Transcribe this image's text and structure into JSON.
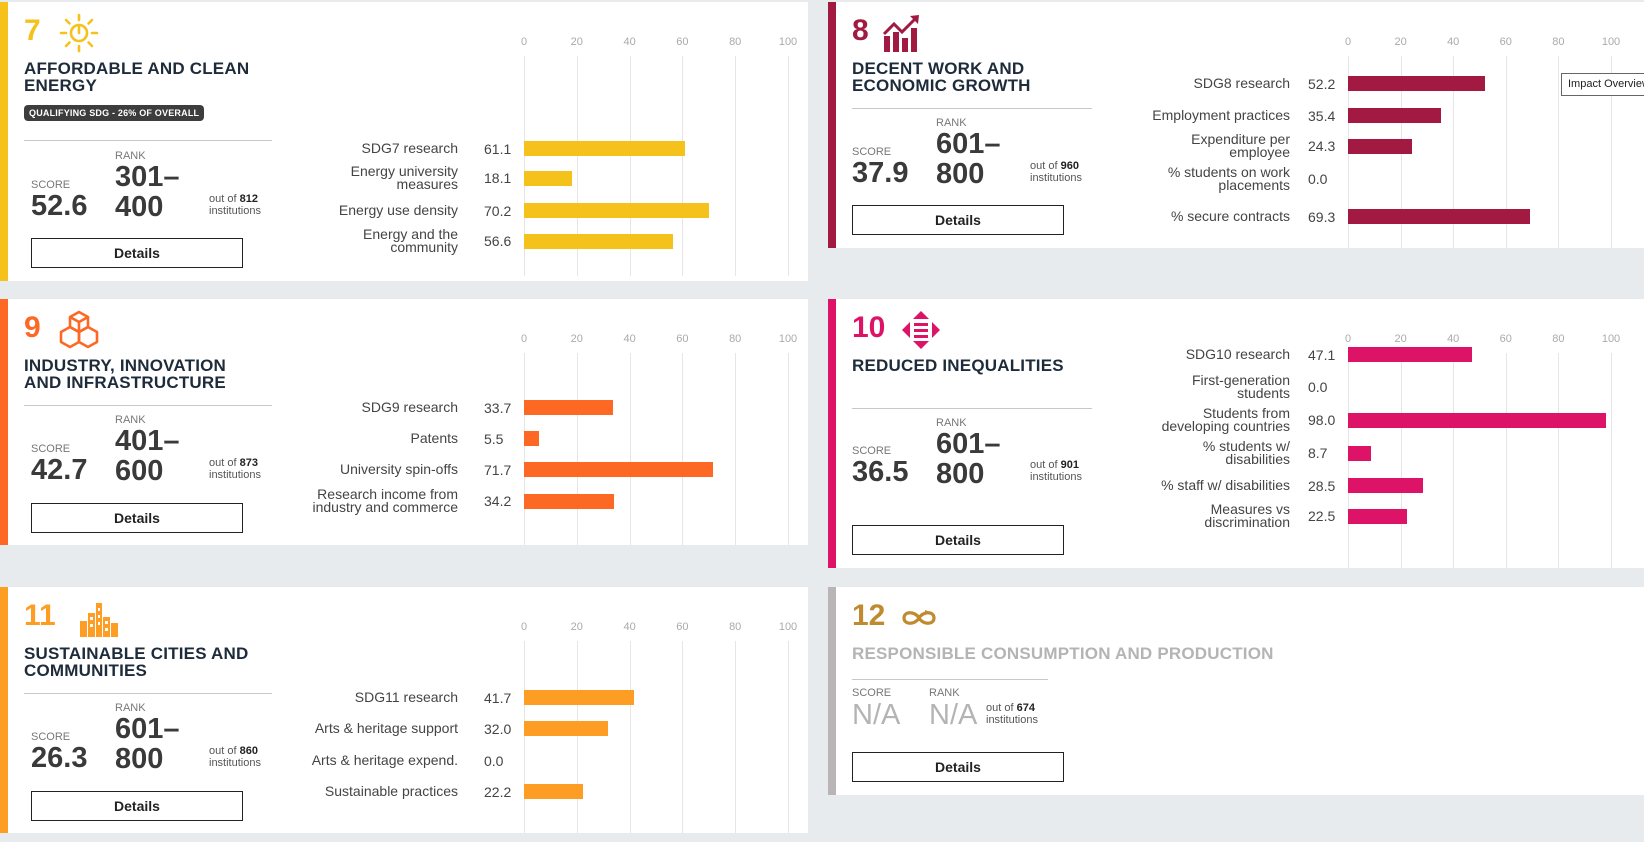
{
  "cards": {
    "sdg7": {
      "number": "7",
      "color": "#f5c21b",
      "icon": "sun-power-icon",
      "title_line1": "AFFORDABLE AND CLEAN",
      "title_line2": "ENERGY",
      "badge": "QUALIFYING SDG - 26% OF OVERALL",
      "score_label": "SCORE",
      "score": "52.6",
      "rank_label": "RANK",
      "rank_line1": "301–",
      "rank_line2": "400",
      "out_of_prefix": "out of",
      "out_of_count": "812",
      "out_of_suffix": "institutions",
      "details_label": "Details",
      "ticks": [
        "0",
        "20",
        "40",
        "60",
        "80",
        "100"
      ],
      "metrics": [
        {
          "label": [
            "SDG7 research"
          ],
          "value": "61.1",
          "v": 61.1
        },
        {
          "label": [
            "Energy university",
            "measures"
          ],
          "value": "18.1",
          "v": 18.1
        },
        {
          "label": [
            "Energy use density"
          ],
          "value": "70.2",
          "v": 70.2
        },
        {
          "label": [
            "Energy and the",
            "community"
          ],
          "value": "56.6",
          "v": 56.6
        }
      ]
    },
    "sdg8": {
      "number": "8",
      "color": "#a21942",
      "icon": "growth-chart-icon",
      "title_line1": "DECENT WORK AND",
      "title_line2": "ECONOMIC GROWTH",
      "score_label": "SCORE",
      "score": "37.9",
      "rank_label": "RANK",
      "rank_line1": "601–",
      "rank_line2": "800",
      "out_of_prefix": "out of",
      "out_of_count": "960",
      "out_of_suffix": "institutions",
      "details_label": "Details",
      "ticks": [
        "0",
        "20",
        "40",
        "60",
        "80",
        "100"
      ],
      "metrics": [
        {
          "label": [
            "SDG8 research"
          ],
          "value": "52.2",
          "v": 52.2
        },
        {
          "label": [
            "Employment practices"
          ],
          "value": "35.4",
          "v": 35.4
        },
        {
          "label": [
            "Expenditure per",
            "employee"
          ],
          "value": "24.3",
          "v": 24.3
        },
        {
          "label": [
            "% students on work",
            "placements"
          ],
          "value": "0.0",
          "v": 0
        },
        {
          "label": [
            "% secure contracts"
          ],
          "value": "69.3",
          "v": 69.3
        }
      ]
    },
    "sdg9": {
      "number": "9",
      "color": "#fd6925",
      "icon": "cubes-icon",
      "title_line1": "INDUSTRY, INNOVATION",
      "title_line2": "AND INFRASTRUCTURE",
      "score_label": "SCORE",
      "score": "42.7",
      "rank_label": "RANK",
      "rank_line1": "401–",
      "rank_line2": "600",
      "out_of_prefix": "out of",
      "out_of_count": "873",
      "out_of_suffix": "institutions",
      "details_label": "Details",
      "ticks": [
        "0",
        "20",
        "40",
        "60",
        "80",
        "100"
      ],
      "metrics": [
        {
          "label": [
            "SDG9 research"
          ],
          "value": "33.7",
          "v": 33.7
        },
        {
          "label": [
            "Patents"
          ],
          "value": "5.5",
          "v": 5.5
        },
        {
          "label": [
            "University spin-offs"
          ],
          "value": "71.7",
          "v": 71.7
        },
        {
          "label": [
            "Research income from",
            "industry and commerce"
          ],
          "value": "34.2",
          "v": 34.2
        }
      ]
    },
    "sdg10": {
      "number": "10",
      "color": "#dd1367",
      "icon": "equality-arrows-icon",
      "title_line1": "REDUCED INEQUALITIES",
      "score_label": "SCORE",
      "score": "36.5",
      "rank_label": "RANK",
      "rank_line1": "601–",
      "rank_line2": "800",
      "out_of_prefix": "out of",
      "out_of_count": "901",
      "out_of_suffix": "institutions",
      "details_label": "Details",
      "ticks": [
        "0",
        "20",
        "40",
        "60",
        "80",
        "100"
      ],
      "metrics": [
        {
          "label": [
            "SDG10 research"
          ],
          "value": "47.1",
          "v": 47.1
        },
        {
          "label": [
            "First-generation",
            "students"
          ],
          "value": "0.0",
          "v": 0
        },
        {
          "label": [
            "Students from",
            "developing countries"
          ],
          "value": "98.0",
          "v": 98.0
        },
        {
          "label": [
            "% students w/",
            "disabilities"
          ],
          "value": "8.7",
          "v": 8.7
        },
        {
          "label": [
            "% staff w/ disabilities"
          ],
          "value": "28.5",
          "v": 28.5
        },
        {
          "label": [
            "Measures vs",
            "discrimination"
          ],
          "value": "22.5",
          "v": 22.5
        }
      ]
    },
    "sdg11": {
      "number": "11",
      "color": "#fd9d24",
      "icon": "city-buildings-icon",
      "title_line1": "SUSTAINABLE CITIES AND",
      "title_line2": "COMMUNITIES",
      "score_label": "SCORE",
      "score": "26.3",
      "rank_label": "RANK",
      "rank_line1": "601–",
      "rank_line2": "800",
      "out_of_prefix": "out of",
      "out_of_count": "860",
      "out_of_suffix": "institutions",
      "details_label": "Details",
      "ticks": [
        "0",
        "20",
        "40",
        "60",
        "80",
        "100"
      ],
      "metrics": [
        {
          "label": [
            "SDG11 research"
          ],
          "value": "41.7",
          "v": 41.7
        },
        {
          "label": [
            "Arts & heritage support"
          ],
          "value": "32.0",
          "v": 32.0
        },
        {
          "label": [
            "Arts & heritage expend."
          ],
          "value": "0.0",
          "v": 0
        },
        {
          "label": [
            "Sustainable practices"
          ],
          "value": "22.2",
          "v": 22.2
        }
      ]
    },
    "sdg12": {
      "number": "12",
      "color": "#bf8b2e",
      "accent": "#b9b5b6",
      "icon": "infinity-loop-icon",
      "title_line1": "RESPONSIBLE CONSUMPTION AND PRODUCTION",
      "score_label": "SCORE",
      "score": "N/A",
      "rank_label": "RANK",
      "rank": "N/A",
      "out_of_prefix": "out of",
      "out_of_count": "674",
      "out_of_suffix": "institutions",
      "details_label": "Details"
    }
  },
  "tooltip": "Impact Overview"
}
